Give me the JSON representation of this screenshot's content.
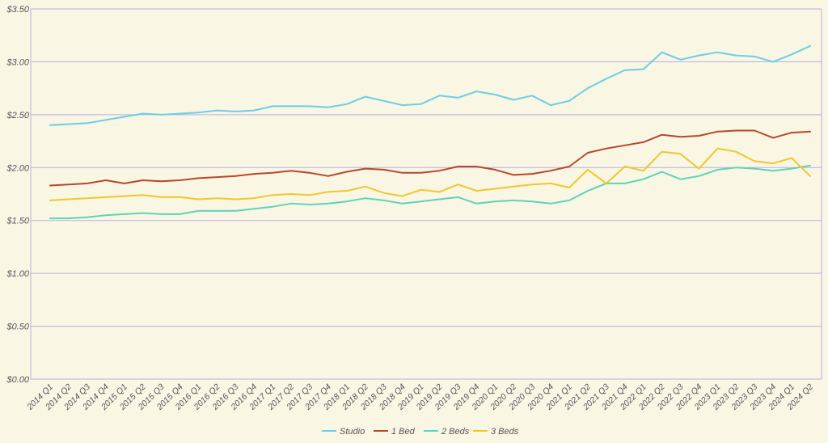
{
  "chart_data": {
    "type": "line",
    "title": "",
    "xlabel": "",
    "ylabel": "",
    "ylim": [
      0,
      3.5
    ],
    "y_ticks": [
      "$0.00",
      "$0.50",
      "$1.00",
      "$1.50",
      "$2.00",
      "$2.50",
      "$3.00",
      "$3.50"
    ],
    "y_tick_values": [
      0,
      0.5,
      1.0,
      1.5,
      2.0,
      2.5,
      3.0,
      3.5
    ],
    "grid": true,
    "legend_position": "bottom",
    "categories": [
      "2014 Q1",
      "2014 Q2",
      "2014 Q3",
      "2014 Q4",
      "2015 Q1",
      "2015 Q2",
      "2015 Q3",
      "2015 Q4",
      "2016 Q1",
      "2016 Q2",
      "2016 Q3",
      "2016 Q4",
      "2017 Q1",
      "2017 Q2",
      "2017 Q3",
      "2017 Q4",
      "2018 Q1",
      "2018 Q2",
      "2018 Q3",
      "2018 Q4",
      "2019 Q1",
      "2019 Q2",
      "2019 Q3",
      "2019 Q4",
      "2020 Q1",
      "2020 Q2",
      "2020 Q3",
      "2020 Q4",
      "2021 Q1",
      "2021 Q2",
      "2021 Q3",
      "2021 Q4",
      "2022 Q1",
      "2022 Q2",
      "2022 Q3",
      "2022 Q4",
      "2023 Q1",
      "2023 Q2",
      "2023 Q3",
      "2023 Q4",
      "2024 Q1",
      "2024 Q2"
    ],
    "series": [
      {
        "name": "Studio",
        "color": "#6dcde6",
        "values": [
          2.4,
          2.41,
          2.42,
          2.45,
          2.48,
          2.51,
          2.5,
          2.51,
          2.52,
          2.54,
          2.53,
          2.54,
          2.58,
          2.58,
          2.58,
          2.57,
          2.6,
          2.67,
          2.63,
          2.59,
          2.6,
          2.68,
          2.66,
          2.72,
          2.69,
          2.64,
          2.68,
          2.59,
          2.63,
          2.75,
          2.84,
          2.92,
          2.93,
          3.09,
          3.02,
          3.06,
          3.09,
          3.06,
          3.05,
          3.0,
          3.07,
          3.15
        ]
      },
      {
        "name": "1 Bed",
        "color": "#b8472b",
        "values": [
          1.83,
          1.84,
          1.85,
          1.88,
          1.85,
          1.88,
          1.87,
          1.88,
          1.9,
          1.91,
          1.92,
          1.94,
          1.95,
          1.97,
          1.95,
          1.92,
          1.96,
          1.99,
          1.98,
          1.95,
          1.95,
          1.97,
          2.01,
          2.01,
          1.98,
          1.93,
          1.94,
          1.97,
          2.01,
          2.14,
          2.18,
          2.21,
          2.24,
          2.31,
          2.29,
          2.3,
          2.34,
          2.35,
          2.35,
          2.28,
          2.33,
          2.34
        ]
      },
      {
        "name": "2 Beds",
        "color": "#5ed3b8",
        "values": [
          1.52,
          1.52,
          1.53,
          1.55,
          1.56,
          1.57,
          1.56,
          1.56,
          1.59,
          1.59,
          1.59,
          1.61,
          1.63,
          1.66,
          1.65,
          1.66,
          1.68,
          1.71,
          1.69,
          1.66,
          1.68,
          1.7,
          1.72,
          1.66,
          1.68,
          1.69,
          1.68,
          1.66,
          1.69,
          1.78,
          1.85,
          1.85,
          1.89,
          1.96,
          1.89,
          1.92,
          1.98,
          2.0,
          1.99,
          1.97,
          1.99,
          2.02
        ]
      },
      {
        "name": "3 Beds",
        "color": "#f2c62b",
        "values": [
          1.69,
          1.7,
          1.71,
          1.72,
          1.73,
          1.74,
          1.72,
          1.72,
          1.7,
          1.71,
          1.7,
          1.71,
          1.74,
          1.75,
          1.74,
          1.77,
          1.78,
          1.82,
          1.76,
          1.73,
          1.79,
          1.77,
          1.84,
          1.78,
          1.8,
          1.82,
          1.84,
          1.85,
          1.81,
          1.98,
          1.85,
          2.01,
          1.97,
          2.15,
          2.13,
          1.99,
          2.18,
          2.15,
          2.06,
          2.04,
          2.09,
          1.92
        ]
      }
    ]
  }
}
